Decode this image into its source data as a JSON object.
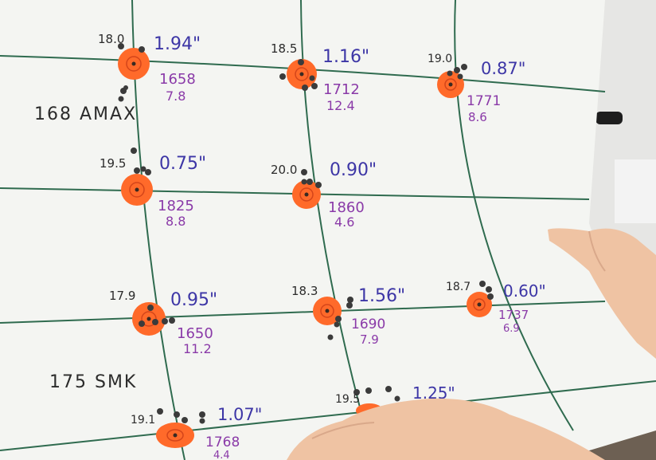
{
  "groups": [
    {
      "id": "g1",
      "charge": "18.0",
      "size": "1.94\"",
      "velocity": "1658",
      "sd": "7.8"
    },
    {
      "id": "g2",
      "charge": "18.5",
      "size": "1.16\"",
      "velocity": "1712",
      "sd": "12.4"
    },
    {
      "id": "g3",
      "charge": "19.0",
      "size": "0.87\"",
      "velocity": "1771",
      "sd": "8.6"
    },
    {
      "id": "g4",
      "charge": "19.5",
      "size": "0.75\"",
      "velocity": "1825",
      "sd": "8.8"
    },
    {
      "id": "g5",
      "charge": "20.0",
      "size": "0.90\"",
      "velocity": "1860",
      "sd": "4.6"
    },
    {
      "id": "g6",
      "charge": "17.9",
      "size": "0.95\"",
      "velocity": "1650",
      "sd": "11.2"
    },
    {
      "id": "g7",
      "charge": "18.3",
      "size": "1.56\"",
      "velocity": "1690",
      "sd": "7.9"
    },
    {
      "id": "g8",
      "charge": "18.7",
      "size": "0.60\"",
      "velocity": "1737",
      "sd": "6.9"
    },
    {
      "id": "g9",
      "charge": "19.1",
      "size": "1.07\"",
      "velocity": "1768",
      "sd": "4.4"
    },
    {
      "id": "g10",
      "charge": "19.5",
      "size": "1.25\""
    }
  ],
  "bullet_labels": {
    "top": "168 AMAX",
    "bottom": "175 SMK"
  },
  "colors": {
    "paper": "#f4f5f2",
    "grid": "#2f6b4f",
    "target": "#ff6a2a",
    "ink_black": "#2b2b2b",
    "ink_blue": "#3d36a6",
    "ink_purple": "#8a3aa8",
    "skin": "#f0c8aa"
  }
}
